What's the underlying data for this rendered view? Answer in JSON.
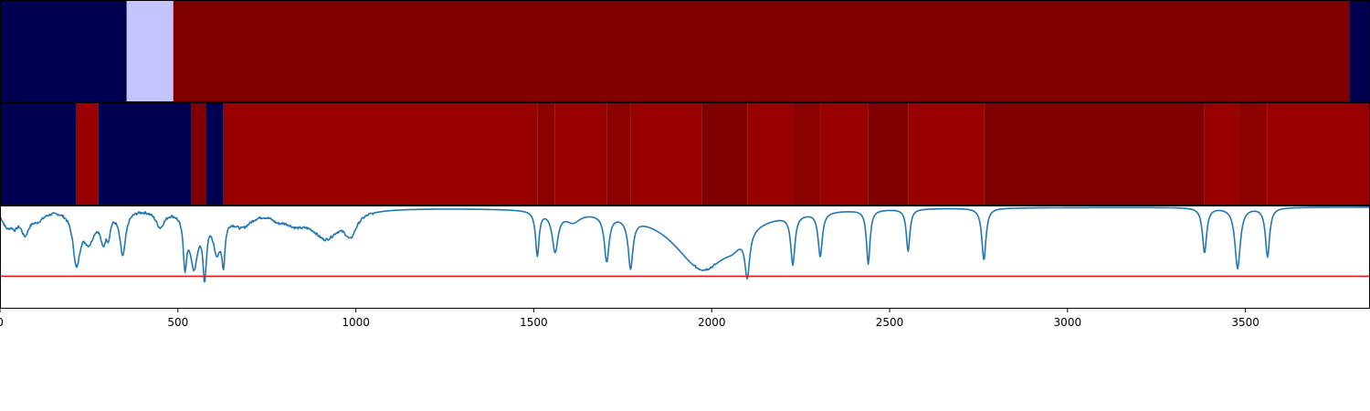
{
  "chart_data": {
    "type": "heatmap",
    "x_range": [
      0,
      3850
    ],
    "x_ticks": [
      0,
      500,
      1000,
      1500,
      2000,
      2500,
      3000,
      3500
    ],
    "x_tick_labels": [
      "0",
      "500",
      "1000",
      "1500",
      "2000",
      "2500",
      "3000",
      "3500"
    ],
    "colors": {
      "navy": "#000050",
      "lavender": "#c4c4ff",
      "dark_red": "#800000",
      "mid_red": "#990000",
      "line": "#1f77b4",
      "threshold": "#e41a1c"
    },
    "strip1": [
      {
        "start": 0,
        "end": 356,
        "color": "#000050"
      },
      {
        "start": 356,
        "end": 487,
        "color": "#c4c4ff"
      },
      {
        "start": 487,
        "end": 3792,
        "color": "#800000"
      },
      {
        "start": 3792,
        "end": 3850,
        "color": "#000050"
      }
    ],
    "strip2": [
      {
        "start": 0,
        "end": 215,
        "color": "#000050"
      },
      {
        "start": 215,
        "end": 277,
        "color": "#990000"
      },
      {
        "start": 277,
        "end": 538,
        "color": "#000050"
      },
      {
        "start": 538,
        "end": 578,
        "color": "#800000"
      },
      {
        "start": 578,
        "end": 628,
        "color": "#000050"
      },
      {
        "start": 628,
        "end": 1510,
        "color": "#990000"
      },
      {
        "start": 1510,
        "end": 1560,
        "color": "#8c0000"
      },
      {
        "start": 1560,
        "end": 1705,
        "color": "#990000"
      },
      {
        "start": 1705,
        "end": 1772,
        "color": "#8c0000"
      },
      {
        "start": 1772,
        "end": 1972,
        "color": "#990000"
      },
      {
        "start": 1972,
        "end": 2100,
        "color": "#800000"
      },
      {
        "start": 2100,
        "end": 2228,
        "color": "#990000"
      },
      {
        "start": 2228,
        "end": 2305,
        "color": "#8c0000"
      },
      {
        "start": 2305,
        "end": 2440,
        "color": "#990000"
      },
      {
        "start": 2440,
        "end": 2552,
        "color": "#800000"
      },
      {
        "start": 2552,
        "end": 2765,
        "color": "#990000"
      },
      {
        "start": 2765,
        "end": 3385,
        "color": "#800000"
      },
      {
        "start": 3385,
        "end": 3478,
        "color": "#990000"
      },
      {
        "start": 3478,
        "end": 3562,
        "color": "#8c0000"
      },
      {
        "start": 3562,
        "end": 3850,
        "color": "#990000"
      }
    ],
    "spectrum": {
      "y_range": [
        -0.05,
        1.0
      ],
      "threshold": 0.28,
      "baseline": 0.985,
      "troughs": [
        [
          20,
          18,
          0.17
        ],
        [
          42,
          10,
          0.1
        ],
        [
          70,
          14,
          0.22
        ],
        [
          105,
          25,
          0.1
        ],
        [
          215,
          12,
          0.52
        ],
        [
          250,
          20,
          0.3
        ],
        [
          290,
          10,
          0.28
        ],
        [
          305,
          6,
          0.18
        ],
        [
          345,
          10,
          0.45
        ],
        [
          450,
          15,
          0.17
        ],
        [
          520,
          6,
          0.48
        ],
        [
          545,
          14,
          0.55
        ],
        [
          575,
          6,
          0.58
        ],
        [
          610,
          14,
          0.38
        ],
        [
          628,
          5,
          0.4
        ],
        [
          680,
          35,
          0.16
        ],
        [
          780,
          20,
          0.06
        ],
        [
          830,
          40,
          0.12
        ],
        [
          915,
          45,
          0.28
        ],
        [
          985,
          20,
          0.22
        ],
        [
          1510,
          6,
          0.45
        ],
        [
          1560,
          10,
          0.4
        ],
        [
          1610,
          25,
          0.1
        ],
        [
          1705,
          8,
          0.47
        ],
        [
          1772,
          8,
          0.5
        ],
        [
          1975,
          100,
          0.62
        ],
        [
          2060,
          30,
          0.1
        ],
        [
          2100,
          8,
          0.45
        ],
        [
          2228,
          7,
          0.5
        ],
        [
          2305,
          7,
          0.45
        ],
        [
          2440,
          6,
          0.55
        ],
        [
          2552,
          6,
          0.43
        ],
        [
          2765,
          7,
          0.53
        ],
        [
          3385,
          7,
          0.46
        ],
        [
          3478,
          9,
          0.62
        ],
        [
          3562,
          7,
          0.5
        ]
      ]
    }
  }
}
